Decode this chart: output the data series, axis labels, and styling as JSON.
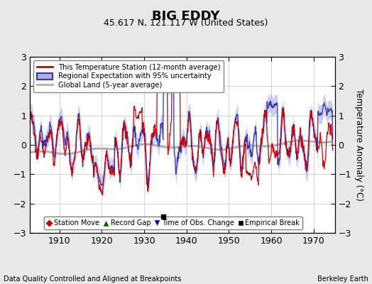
{
  "title": "BIG EDDY",
  "subtitle": "45.617 N, 121.117 W (United States)",
  "ylabel": "Temperature Anomaly (°C)",
  "xlabel_bottom_left": "Data Quality Controlled and Aligned at Breakpoints",
  "xlabel_bottom_right": "Berkeley Earth",
  "xlim": [
    1903,
    1975
  ],
  "ylim": [
    -3,
    3
  ],
  "yticks": [
    -3,
    -2,
    -1,
    0,
    1,
    2,
    3
  ],
  "xticks": [
    1910,
    1920,
    1930,
    1940,
    1950,
    1960,
    1970
  ],
  "background_color": "#e8e8e8",
  "plot_bg_color": "#ffffff",
  "red_line_color": "#cc0000",
  "blue_line_color": "#3333bb",
  "blue_fill_color": "#b0b0e0",
  "gray_line_color": "#b0b0b0",
  "empirical_break_year": 1934.5,
  "empirical_break_value": -2.45,
  "legend_entries": [
    "This Temperature Station (12-month average)",
    "Regional Expectation with 95% uncertainty",
    "Global Land (5-year average)"
  ],
  "bottom_legend_entries": [
    "Station Move",
    "Record Gap",
    "Time of Obs. Change",
    "Empirical Break"
  ],
  "bottom_legend_colors": [
    "#cc0000",
    "#006600",
    "#0000cc",
    "#000000"
  ],
  "bottom_legend_markers": [
    "D",
    "^",
    "v",
    "s"
  ]
}
